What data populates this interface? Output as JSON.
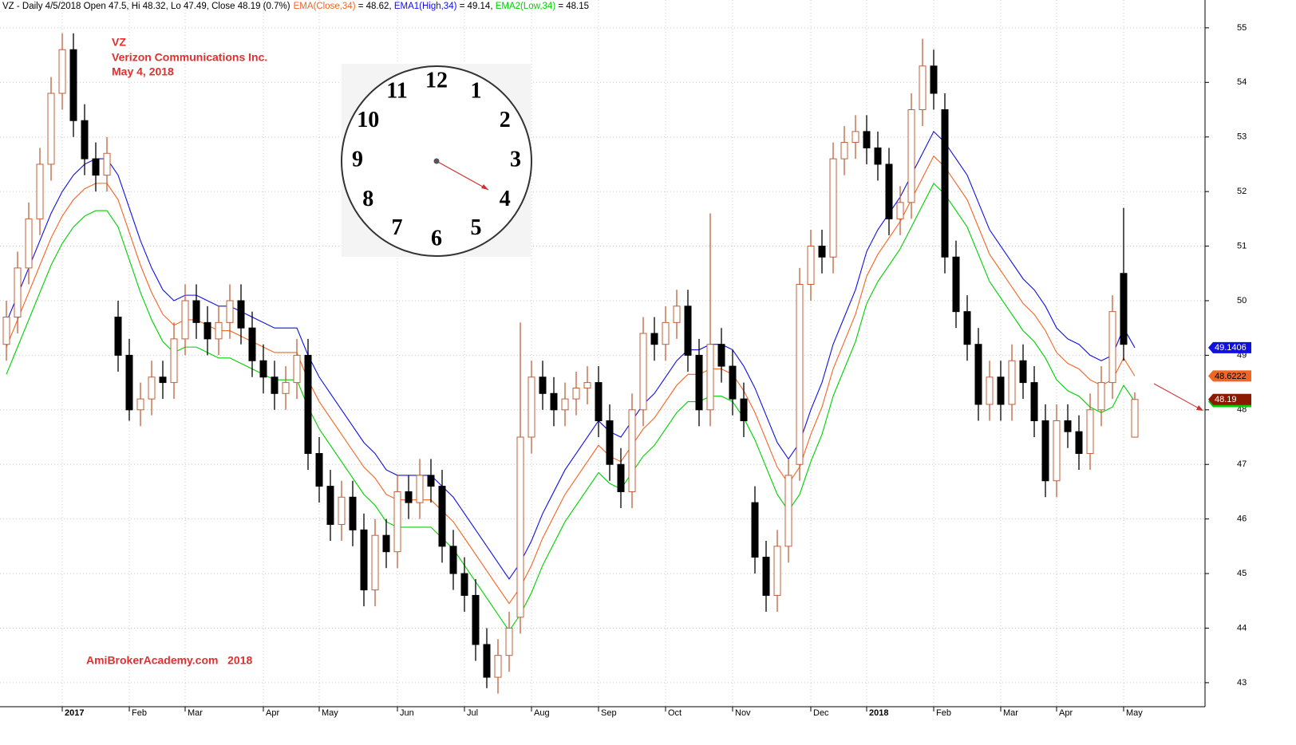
{
  "chart_data": {
    "type": "candlestick",
    "header": "VZ - Daily 4/5/2018 Open 47.5, Hi 48.32, Lo 47.49, Close 48.19 (0.7%)",
    "annotations": [
      "VZ",
      "Verizon Communications Inc.",
      "May 4, 2018"
    ],
    "watermark": "AmiBrokerAcademy.com   2018",
    "clock_numbers": [
      "12",
      "1",
      "2",
      "3",
      "4",
      "5",
      "6",
      "7",
      "8",
      "9",
      "10",
      "11"
    ],
    "categories": [
      null,
      null,
      null,
      null,
      null,
      "2017",
      null,
      null,
      null,
      null,
      null,
      "Feb",
      null,
      null,
      null,
      null,
      "Mar",
      null,
      null,
      null,
      null,
      null,
      null,
      "Apr",
      null,
      null,
      null,
      null,
      "May",
      null,
      null,
      null,
      null,
      null,
      null,
      "Jun",
      null,
      null,
      null,
      null,
      null,
      "Jul",
      null,
      null,
      null,
      null,
      null,
      "Aug",
      null,
      null,
      null,
      null,
      null,
      "Sep",
      null,
      null,
      null,
      null,
      null,
      "Oct",
      null,
      null,
      null,
      null,
      null,
      "Nov",
      null,
      null,
      null,
      null,
      null,
      null,
      "Dec",
      null,
      null,
      null,
      null,
      "2018",
      null,
      null,
      null,
      null,
      null,
      "Feb",
      null,
      null,
      null,
      null,
      null,
      "Mar",
      null,
      null,
      null,
      null,
      "Apr",
      null,
      null,
      null,
      null,
      null,
      "May",
      null
    ],
    "bold_categories": [
      "2017",
      "2018"
    ],
    "open": [
      49.2,
      49.7,
      50.6,
      51.5,
      52.5,
      53.8,
      54.6,
      53.3,
      52.6,
      52.3,
      49.7,
      49.0,
      48.0,
      48.2,
      48.6,
      48.5,
      49.3,
      50.0,
      49.6,
      49.3,
      49.6,
      50.0,
      49.5,
      48.9,
      48.6,
      48.3,
      48.5,
      49.0,
      47.2,
      46.6,
      45.9,
      46.4,
      45.8,
      44.7,
      45.7,
      45.4,
      46.5,
      46.3,
      46.8,
      46.6,
      45.5,
      45.0,
      44.6,
      43.7,
      43.1,
      43.5,
      44.2,
      47.5,
      48.6,
      48.3,
      48.0,
      48.2,
      48.4,
      48.5,
      47.8,
      47.0,
      46.5,
      48.0,
      49.4,
      49.2,
      49.6,
      49.9,
      49.0,
      48.0,
      49.2,
      48.8,
      48.2,
      46.3,
      45.3,
      44.6,
      45.5,
      47.0,
      50.3,
      51.0,
      50.8,
      52.6,
      52.9,
      53.1,
      52.8,
      52.5,
      51.5,
      51.8,
      53.5,
      54.3,
      53.5,
      50.8,
      49.8,
      49.2,
      48.1,
      48.6,
      48.1,
      48.9,
      48.5,
      47.8,
      46.7,
      47.8,
      47.6,
      47.2,
      48.0,
      48.5,
      50.5,
      47.5
    ],
    "high": [
      50.0,
      50.9,
      51.8,
      52.8,
      54.1,
      54.9,
      54.9,
      53.6,
      52.9,
      53.0,
      50.0,
      49.3,
      48.5,
      48.9,
      48.9,
      49.6,
      50.3,
      50.3,
      49.9,
      49.9,
      50.3,
      50.3,
      49.8,
      49.2,
      48.9,
      48.8,
      49.3,
      49.3,
      47.5,
      46.9,
      46.7,
      46.7,
      46.1,
      46.0,
      46.0,
      46.8,
      46.8,
      47.1,
      47.1,
      46.9,
      45.8,
      45.3,
      44.9,
      44.0,
      43.8,
      44.3,
      49.6,
      48.9,
      48.9,
      48.6,
      48.5,
      48.7,
      48.8,
      48.8,
      48.1,
      47.3,
      48.3,
      49.7,
      49.7,
      49.9,
      50.2,
      50.2,
      49.3,
      51.6,
      49.5,
      49.1,
      48.5,
      46.6,
      45.6,
      45.8,
      47.1,
      50.6,
      51.3,
      51.3,
      52.9,
      53.2,
      53.4,
      53.4,
      53.1,
      52.8,
      52.1,
      53.8,
      54.8,
      54.6,
      53.8,
      51.1,
      50.1,
      49.5,
      48.9,
      48.9,
      49.2,
      49.2,
      48.8,
      48.1,
      48.1,
      48.1,
      47.9,
      48.3,
      48.8,
      50.1,
      51.7,
      48.32
    ],
    "low": [
      48.9,
      49.4,
      50.3,
      51.2,
      52.2,
      53.5,
      53.0,
      52.3,
      52.0,
      52.0,
      48.7,
      47.8,
      47.7,
      47.9,
      48.2,
      48.2,
      49.0,
      49.3,
      49.0,
      49.0,
      49.3,
      49.2,
      48.6,
      48.3,
      48.0,
      48.0,
      48.2,
      46.9,
      46.3,
      45.6,
      45.6,
      45.5,
      44.4,
      44.4,
      45.1,
      45.1,
      46.0,
      46.0,
      46.3,
      45.2,
      44.7,
      44.3,
      43.4,
      42.9,
      42.8,
      43.2,
      43.9,
      47.2,
      48.0,
      47.7,
      47.7,
      47.9,
      48.1,
      47.5,
      46.7,
      46.2,
      46.2,
      47.7,
      48.9,
      48.9,
      49.3,
      48.7,
      47.7,
      47.7,
      48.5,
      47.9,
      47.5,
      45.0,
      44.3,
      44.3,
      45.2,
      46.7,
      50.0,
      50.5,
      50.5,
      52.3,
      52.6,
      52.5,
      52.2,
      51.2,
      51.2,
      51.5,
      53.2,
      53.5,
      50.5,
      49.5,
      48.9,
      47.8,
      47.8,
      47.8,
      47.8,
      48.2,
      47.5,
      46.4,
      46.4,
      47.3,
      46.9,
      46.9,
      47.7,
      48.2,
      48.9,
      47.49
    ],
    "close": [
      49.7,
      50.6,
      51.5,
      52.5,
      53.8,
      54.6,
      53.3,
      52.6,
      52.3,
      52.7,
      49.0,
      48.0,
      48.2,
      48.6,
      48.5,
      49.3,
      50.0,
      49.6,
      49.3,
      49.6,
      50.0,
      49.5,
      48.9,
      48.6,
      48.3,
      48.5,
      49.0,
      47.2,
      46.6,
      45.9,
      46.4,
      45.8,
      44.7,
      45.7,
      45.4,
      46.5,
      46.3,
      46.8,
      46.6,
      45.5,
      45.0,
      44.6,
      43.7,
      43.1,
      43.5,
      44.0,
      47.5,
      48.6,
      48.3,
      48.0,
      48.2,
      48.4,
      48.5,
      47.8,
      47.0,
      46.5,
      48.0,
      49.4,
      49.2,
      49.6,
      49.9,
      49.0,
      48.0,
      49.2,
      48.8,
      48.2,
      47.8,
      45.3,
      44.6,
      45.5,
      46.8,
      50.3,
      51.0,
      50.8,
      52.6,
      52.9,
      53.1,
      52.8,
      52.5,
      51.5,
      51.8,
      53.5,
      54.3,
      53.8,
      50.8,
      49.8,
      49.2,
      48.1,
      48.6,
      48.1,
      48.9,
      48.5,
      47.8,
      46.7,
      47.8,
      47.6,
      47.2,
      48.0,
      48.5,
      49.8,
      49.2,
      48.19
    ],
    "up_color": "#c0603a",
    "down_color": "#000000",
    "last_label": "48.19",
    "last_label_color": "#8b1a00",
    "series": [
      {
        "name": "EMA(Close,34)",
        "color": "#f26522",
        "header_value": " = 48.62, ",
        "last_label": "48.6222",
        "label_text_color": "#000000",
        "values": [
          49.15,
          49.65,
          50.15,
          50.65,
          51.15,
          51.55,
          51.85,
          52.05,
          52.15,
          52.15,
          51.85,
          51.25,
          50.65,
          50.15,
          49.75,
          49.55,
          49.65,
          49.65,
          49.55,
          49.45,
          49.45,
          49.35,
          49.25,
          49.15,
          49.05,
          49.05,
          49.05,
          48.55,
          48.15,
          47.85,
          47.55,
          47.25,
          46.95,
          46.75,
          46.45,
          46.35,
          46.35,
          46.35,
          46.35,
          46.15,
          45.95,
          45.65,
          45.35,
          45.05,
          44.75,
          44.45,
          44.75,
          45.15,
          45.65,
          46.05,
          46.45,
          46.75,
          47.05,
          47.35,
          47.15,
          47.05,
          47.35,
          47.65,
          47.85,
          48.15,
          48.45,
          48.65,
          48.65,
          48.75,
          48.75,
          48.65,
          48.35,
          47.95,
          47.45,
          46.95,
          46.65,
          46.95,
          47.55,
          48.05,
          48.75,
          49.25,
          49.75,
          50.45,
          50.85,
          51.15,
          51.45,
          51.85,
          52.25,
          52.65,
          52.45,
          52.15,
          51.85,
          51.35,
          50.85,
          50.55,
          50.25,
          49.95,
          49.75,
          49.45,
          49.05,
          48.85,
          48.75,
          48.55,
          48.45,
          48.55,
          48.95,
          48.62
        ]
      },
      {
        "name": "EMA1(High,34)",
        "color": "#1010e0",
        "header_value": " = 49.14, ",
        "last_label": "49.1406",
        "label_text_color": "#ffffff",
        "values": [
          49.6,
          50.1,
          50.6,
          51.1,
          51.6,
          52.0,
          52.3,
          52.5,
          52.6,
          52.6,
          52.3,
          51.7,
          51.1,
          50.6,
          50.2,
          50.0,
          50.1,
          50.1,
          50.0,
          49.9,
          49.9,
          49.8,
          49.7,
          49.6,
          49.5,
          49.5,
          49.5,
          49.0,
          48.6,
          48.3,
          48.0,
          47.7,
          47.4,
          47.2,
          46.9,
          46.8,
          46.8,
          46.8,
          46.8,
          46.6,
          46.4,
          46.1,
          45.8,
          45.5,
          45.2,
          44.9,
          45.2,
          45.6,
          46.1,
          46.5,
          46.9,
          47.2,
          47.5,
          47.8,
          47.6,
          47.5,
          47.8,
          48.1,
          48.3,
          48.6,
          48.9,
          49.1,
          49.1,
          49.2,
          49.2,
          49.1,
          48.8,
          48.4,
          47.9,
          47.4,
          47.1,
          47.4,
          48.0,
          48.5,
          49.2,
          49.7,
          50.2,
          50.9,
          51.3,
          51.6,
          51.9,
          52.3,
          52.7,
          53.1,
          52.9,
          52.6,
          52.3,
          51.8,
          51.3,
          51.0,
          50.7,
          50.4,
          50.2,
          49.9,
          49.5,
          49.3,
          49.2,
          49.0,
          48.9,
          49.0,
          49.5,
          49.14
        ]
      },
      {
        "name": "EMA2(Low,34)",
        "color": "#00d000",
        "header_value": " = 48.15",
        "last_label": "48.151",
        "label_text_color": "#000000",
        "values": [
          48.65,
          49.15,
          49.65,
          50.15,
          50.65,
          51.05,
          51.35,
          51.55,
          51.65,
          51.65,
          51.35,
          50.75,
          50.15,
          49.65,
          49.25,
          49.05,
          49.15,
          49.15,
          49.05,
          48.95,
          48.95,
          48.85,
          48.75,
          48.65,
          48.55,
          48.55,
          48.55,
          48.05,
          47.65,
          47.35,
          47.05,
          46.75,
          46.45,
          46.25,
          45.95,
          45.85,
          45.85,
          45.85,
          45.85,
          45.65,
          45.45,
          45.15,
          44.85,
          44.55,
          44.25,
          43.95,
          44.25,
          44.65,
          45.15,
          45.55,
          45.95,
          46.25,
          46.55,
          46.85,
          46.65,
          46.55,
          46.85,
          47.15,
          47.35,
          47.65,
          47.95,
          48.15,
          48.15,
          48.25,
          48.25,
          48.15,
          47.85,
          47.45,
          46.95,
          46.45,
          46.15,
          46.45,
          47.05,
          47.55,
          48.25,
          48.75,
          49.25,
          49.95,
          50.35,
          50.65,
          50.95,
          51.35,
          51.75,
          52.15,
          51.95,
          51.65,
          51.35,
          50.85,
          50.35,
          50.05,
          49.75,
          49.45,
          49.25,
          48.95,
          48.55,
          48.35,
          48.25,
          48.05,
          47.95,
          48.05,
          48.45,
          48.15
        ]
      }
    ],
    "ylim": [
      42.56,
      55.51
    ],
    "yticks": [
      43,
      44,
      45,
      46,
      47,
      48,
      49,
      50,
      51,
      52,
      53,
      54,
      55
    ],
    "grid": true
  }
}
